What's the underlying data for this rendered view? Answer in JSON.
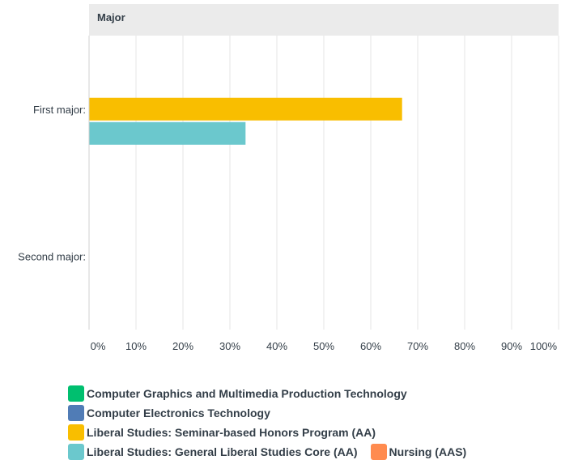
{
  "chart_data": {
    "type": "bar",
    "orientation": "horizontal",
    "title": "Major",
    "categories": [
      "First major:",
      "Second major:"
    ],
    "series": [
      {
        "name": "Computer Graphics and Multimedia Production Technology",
        "color": "#00bf6f",
        "values": [
          0,
          0
        ]
      },
      {
        "name": "Computer Electronics Technology",
        "color": "#507cb6",
        "values": [
          0,
          0
        ]
      },
      {
        "name": "Liberal Studies: Seminar-based Honors Program (AA)",
        "color": "#f9be00",
        "values": [
          66.67,
          0
        ]
      },
      {
        "name": "Liberal Studies: General Liberal Studies Core (AA)",
        "color": "#6bc8cd",
        "values": [
          33.33,
          0
        ]
      },
      {
        "name": "Nursing (AAS)",
        "color": "#ff8b4f",
        "values": [
          0,
          0
        ]
      }
    ],
    "xlim": [
      0,
      100
    ],
    "xticks": [
      "0%",
      "10%",
      "20%",
      "30%",
      "40%",
      "50%",
      "60%",
      "70%",
      "80%",
      "90%",
      "100%"
    ],
    "grid": true,
    "legend_position": "bottom"
  },
  "colors": {
    "header_band": "#ebebeb",
    "gridline": "#e4e4e4",
    "axis": "#333e48"
  }
}
